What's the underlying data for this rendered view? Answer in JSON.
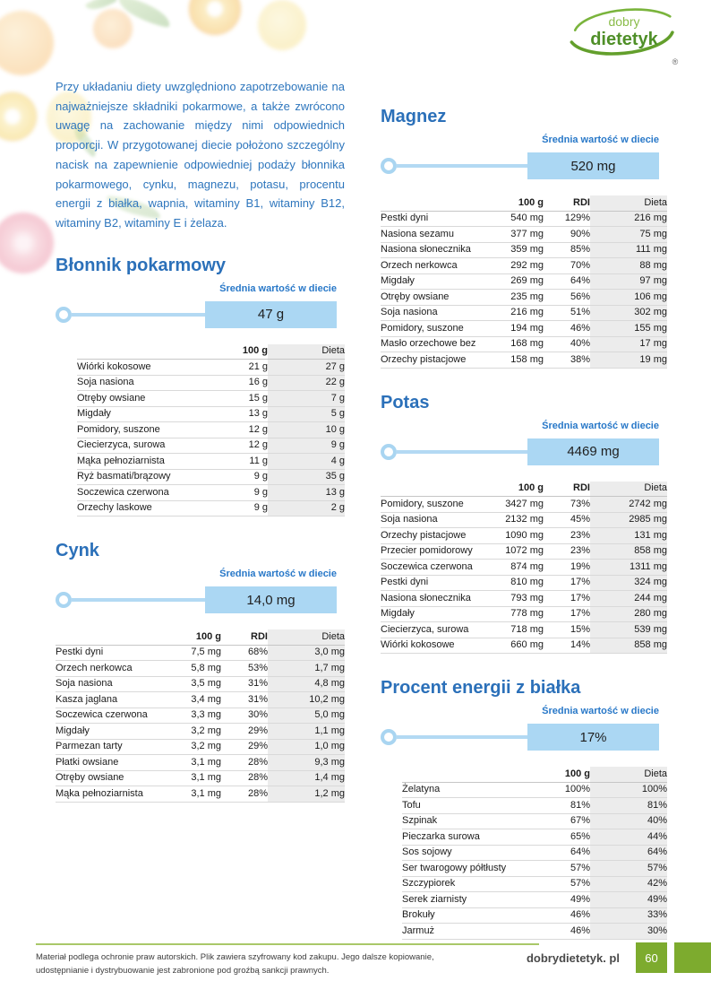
{
  "logo": {
    "top": "dobry",
    "bottom": "dietetyk",
    "registered": "®"
  },
  "intro": "Przy układaniu diety uwzględniono zapotrzebowanie na najważniejsze składniki pokarmowe, a także zwrócono uwagę na zachowanie między nimi odpowiednich proporcji. W przygotowanej diecie położono szczególny nacisk na zapewnienie odpowiedniej podaży błonnika pokarmowego, cynku, magnezu, potasu, procentu energii z białka, wapnia, witaminy B1, witaminy B12, witaminy B2, witaminy E i żelaza.",
  "slider_label": "Średnia wartość w diecie",
  "sections": {
    "blonnik": {
      "title": "Błonnik pokarmowy",
      "value": "47 g",
      "columns": [
        "",
        "100 g",
        "Dieta"
      ],
      "rows": [
        [
          "Wiórki kokosowe",
          "21 g",
          "27 g"
        ],
        [
          "Soja nasiona",
          "16 g",
          "22 g"
        ],
        [
          "Otręby owsiane",
          "15 g",
          "7 g"
        ],
        [
          "Migdały",
          "13 g",
          "5 g"
        ],
        [
          "Pomidory, suszone",
          "12 g",
          "10 g"
        ],
        [
          "Ciecierzyca, surowa",
          "12 g",
          "9 g"
        ],
        [
          "Mąka pełnoziarnista",
          "11 g",
          "4 g"
        ],
        [
          "Ryż basmati/brązowy",
          "9 g",
          "35 g"
        ],
        [
          "Soczewica czerwona",
          "9 g",
          "13 g"
        ],
        [
          "Orzechy laskowe",
          "9 g",
          "2 g"
        ]
      ]
    },
    "cynk": {
      "title": "Cynk",
      "value": "14,0 mg",
      "columns": [
        "",
        "100 g",
        "RDI",
        "Dieta"
      ],
      "rows": [
        [
          "Pestki dyni",
          "7,5 mg",
          "68%",
          "3,0 mg"
        ],
        [
          "Orzech nerkowca",
          "5,8 mg",
          "53%",
          "1,7 mg"
        ],
        [
          "Soja nasiona",
          "3,5 mg",
          "31%",
          "4,8 mg"
        ],
        [
          "Kasza jaglana",
          "3,4 mg",
          "31%",
          "10,2 mg"
        ],
        [
          "Soczewica czerwona",
          "3,3 mg",
          "30%",
          "5,0 mg"
        ],
        [
          "Migdały",
          "3,2 mg",
          "29%",
          "1,1 mg"
        ],
        [
          "Parmezan tarty",
          "3,2 mg",
          "29%",
          "1,0 mg"
        ],
        [
          "Płatki owsiane",
          "3,1 mg",
          "28%",
          "9,3 mg"
        ],
        [
          "Otręby owsiane",
          "3,1 mg",
          "28%",
          "1,4 mg"
        ],
        [
          "Mąka pełnoziarnista",
          "3,1 mg",
          "28%",
          "1,2 mg"
        ]
      ]
    },
    "magnez": {
      "title": "Magnez",
      "value": "520 mg",
      "columns": [
        "",
        "100 g",
        "RDI",
        "Dieta"
      ],
      "rows": [
        [
          "Pestki dyni",
          "540 mg",
          "129%",
          "216 mg"
        ],
        [
          "Nasiona sezamu",
          "377 mg",
          "90%",
          "75 mg"
        ],
        [
          "Nasiona słonecznika",
          "359 mg",
          "85%",
          "111 mg"
        ],
        [
          "Orzech nerkowca",
          "292 mg",
          "70%",
          "88 mg"
        ],
        [
          "Migdały",
          "269 mg",
          "64%",
          "97 mg"
        ],
        [
          "Otręby owsiane",
          "235 mg",
          "56%",
          "106 mg"
        ],
        [
          "Soja nasiona",
          "216 mg",
          "51%",
          "302 mg"
        ],
        [
          "Pomidory, suszone",
          "194 mg",
          "46%",
          "155 mg"
        ],
        [
          "Masło orzechowe bez soli",
          "168 mg",
          "40%",
          "17 mg"
        ],
        [
          "Orzechy pistacjowe",
          "158 mg",
          "38%",
          "19 mg"
        ]
      ]
    },
    "potas": {
      "title": "Potas",
      "value": "4469 mg",
      "columns": [
        "",
        "100 g",
        "RDI",
        "Dieta"
      ],
      "rows": [
        [
          "Pomidory, suszone",
          "3427 mg",
          "73%",
          "2742 mg"
        ],
        [
          "Soja nasiona",
          "2132 mg",
          "45%",
          "2985 mg"
        ],
        [
          "Orzechy pistacjowe",
          "1090 mg",
          "23%",
          "131 mg"
        ],
        [
          "Przecier pomidorowy",
          "1072 mg",
          "23%",
          "858 mg"
        ],
        [
          "Soczewica czerwona",
          "874 mg",
          "19%",
          "1311 mg"
        ],
        [
          "Pestki dyni",
          "810 mg",
          "17%",
          "324 mg"
        ],
        [
          "Nasiona słonecznika",
          "793 mg",
          "17%",
          "244 mg"
        ],
        [
          "Migdały",
          "778 mg",
          "17%",
          "280 mg"
        ],
        [
          "Ciecierzyca, surowa",
          "718 mg",
          "15%",
          "539 mg"
        ],
        [
          "Wiórki kokosowe",
          "660 mg",
          "14%",
          "858 mg"
        ]
      ]
    },
    "bialko": {
      "title": "Procent energii z białka",
      "value": "17%",
      "columns": [
        "",
        "100 g",
        "Dieta"
      ],
      "rows": [
        [
          "Żelatyna",
          "100%",
          "100%"
        ],
        [
          "Tofu",
          "81%",
          "81%"
        ],
        [
          "Szpinak",
          "67%",
          "40%"
        ],
        [
          "Pieczarka surowa",
          "65%",
          "44%"
        ],
        [
          "Sos sojowy",
          "64%",
          "64%"
        ],
        [
          "Ser twarogowy półtłusty",
          "57%",
          "57%"
        ],
        [
          "Szczypiorek",
          "57%",
          "42%"
        ],
        [
          "Serek ziarnisty",
          "49%",
          "49%"
        ],
        [
          "Brokuły",
          "46%",
          "33%"
        ],
        [
          "Jarmuż",
          "46%",
          "30%"
        ]
      ]
    }
  },
  "footer": {
    "disclaimer": "Materiał podlega ochronie praw autorskich. Plik zawiera szyfrowany kod zakupu. Jego dalsze kopiowanie, udostępnianie i dystrybuowanie jest zabronione pod groźbą sankcji prawnych.",
    "site": "dobrydietetyk. pl",
    "page_number": "60"
  },
  "colors": {
    "accent_blue": "#2b70b9",
    "label_blue": "#2878c8",
    "slider_fill": "#abd7f3",
    "brand_green": "#6fae35",
    "footer_green": "#7dab2e"
  }
}
